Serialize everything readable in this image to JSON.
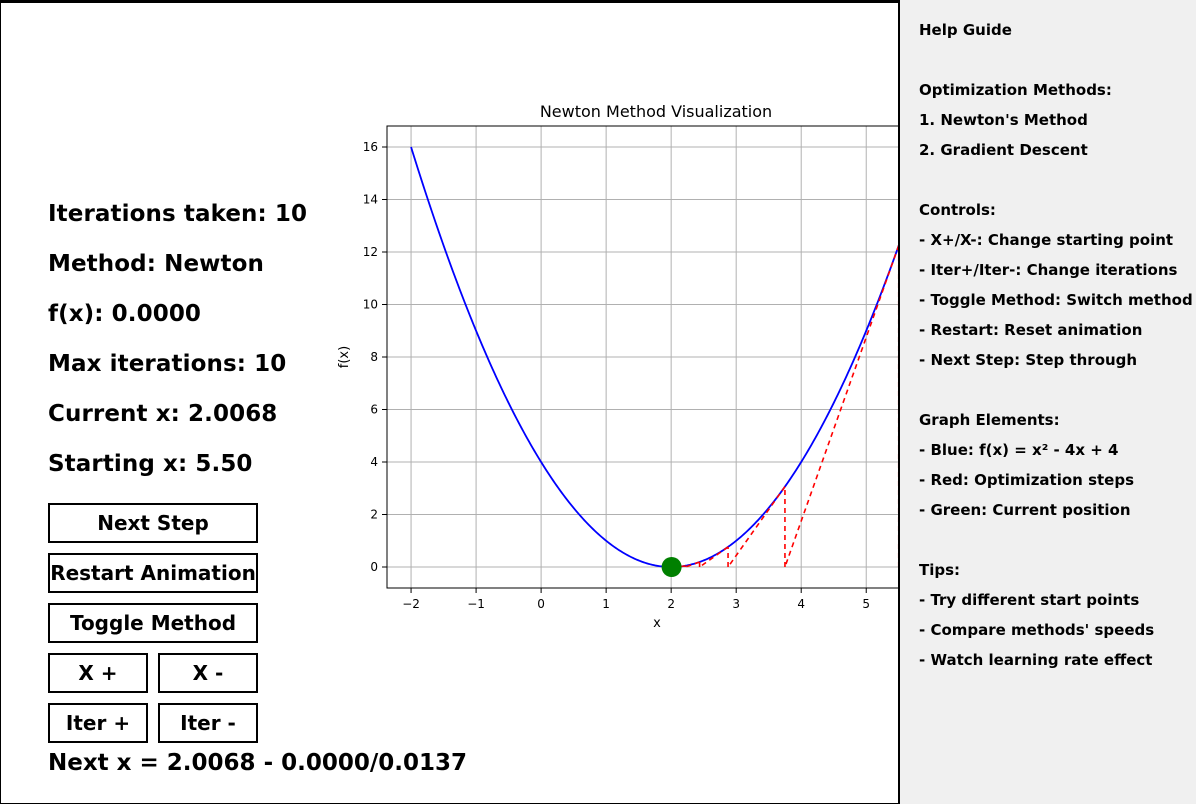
{
  "stats": {
    "iterations": "Iterations taken: 10",
    "method": "Method: Newton",
    "fx": "f(x): 0.0000",
    "max_iterations": "Max iterations: 10",
    "current_x": "Current x: 2.0068",
    "starting_x": "Starting x: 5.50"
  },
  "buttons": {
    "next_step": "Next Step",
    "restart": "Restart Animation",
    "toggle": "Toggle Method",
    "x_plus": "X +",
    "x_minus": "X -",
    "iter_plus": "Iter +",
    "iter_minus": "Iter -"
  },
  "formula": "Next x = 2.0068 - 0.0000/0.0137",
  "chart_data": {
    "type": "line",
    "title": "Newton Method Visualization",
    "xlabel": "x",
    "ylabel": "f(x)",
    "xlim": [
      -2.37,
      5.95
    ],
    "ylim": [
      -0.8,
      16.8
    ],
    "x_ticks": [
      -2,
      -1,
      0,
      1,
      2,
      3,
      4,
      5
    ],
    "y_ticks": [
      0,
      2,
      4,
      6,
      8,
      10,
      12,
      14,
      16
    ],
    "grid": true,
    "series": [
      {
        "function": "x^2 - 4x + 4",
        "x_range": [
          -2,
          6
        ],
        "color": "#0000ff"
      }
    ],
    "steps": [
      5.5,
      3.75,
      2.875,
      2.4375,
      2.21875,
      2.109,
      2.055,
      2.027,
      2.014,
      2.0068
    ],
    "step_color": "#ff0000",
    "current_point": {
      "x": 2.0068,
      "y": 0.0,
      "color": "#008000"
    }
  },
  "help": {
    "title": "Help Guide",
    "methods_heading": "Optimization Methods:",
    "method1": "1. Newton's Method",
    "method2": "2. Gradient Descent",
    "controls_heading": "Controls:",
    "c1": "- X+/X-: Change starting point",
    "c2": "- Iter+/Iter-: Change iterations",
    "c3": "- Toggle Method: Switch method",
    "c4": "- Restart: Reset animation",
    "c5": "- Next Step: Step through",
    "graph_heading": "Graph Elements:",
    "g1": "- Blue: f(x) = x² - 4x + 4",
    "g2": "- Red: Optimization steps",
    "g3": "- Green: Current position",
    "tips_heading": "Tips:",
    "t1": "- Try different start points",
    "t2": "- Compare methods' speeds",
    "t3": "- Watch learning rate effect"
  }
}
